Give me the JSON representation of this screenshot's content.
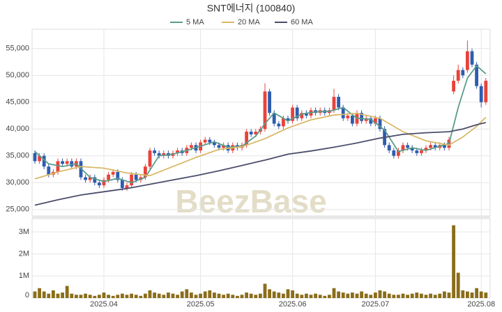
{
  "chart_data": {
    "type": "candlestick",
    "title": "SNT에너지 (100840)",
    "watermark": "BeezBase",
    "grid": true,
    "categories": [
      null,
      null,
      null,
      null,
      null,
      null,
      null,
      null,
      null,
      null,
      null,
      null,
      null,
      null,
      null,
      "2025.04",
      null,
      null,
      null,
      null,
      null,
      null,
      null,
      null,
      null,
      null,
      null,
      null,
      null,
      null,
      null,
      null,
      null,
      null,
      null,
      null,
      "2025.05",
      null,
      null,
      null,
      null,
      null,
      null,
      null,
      null,
      null,
      null,
      null,
      null,
      null,
      null,
      null,
      null,
      null,
      null,
      null,
      "2025.06",
      null,
      null,
      null,
      null,
      null,
      null,
      null,
      null,
      null,
      null,
      null,
      null,
      null,
      null,
      null,
      null,
      null,
      "2025.07",
      null,
      null,
      null,
      null,
      null,
      null,
      null,
      null,
      null,
      null,
      null,
      null,
      null,
      null,
      null,
      null,
      null,
      null,
      null,
      null,
      null,
      null,
      "2025.08",
      null
    ],
    "open": [
      35500,
      34000,
      35000,
      33000,
      31500,
      32000,
      34000,
      33500,
      34000,
      33000,
      34000,
      31000,
      30500,
      31000,
      30000,
      29500,
      30500,
      31500,
      32000,
      30500,
      29000,
      29500,
      31500,
      30500,
      31000,
      33000,
      36000,
      35500,
      35000,
      35500,
      35000,
      35500,
      36000,
      35500,
      36500,
      37000,
      36000,
      37500,
      38000,
      37500,
      37000,
      36500,
      37000,
      36000,
      37000,
      36500,
      37000,
      39500,
      39000,
      39500,
      40000,
      47000,
      43000,
      41000,
      40500,
      42000,
      41500,
      44000,
      42000,
      43000,
      42500,
      43500,
      43000,
      43500,
      43000,
      43500,
      46000,
      44000,
      42000,
      42500,
      41000,
      43000,
      41500,
      42000,
      41000,
      42000,
      40000,
      37000,
      36000,
      35000,
      36000,
      37000,
      36500,
      36000,
      35500,
      36000,
      36500,
      37000,
      36500,
      37000,
      36500,
      47000,
      49000,
      51000,
      51000,
      54500,
      52000,
      48000,
      45000
    ],
    "high": [
      36000,
      35500,
      35500,
      33500,
      32500,
      34500,
      34500,
      34500,
      34500,
      34500,
      34500,
      31500,
      31500,
      31500,
      30500,
      31000,
      32000,
      32500,
      32500,
      31000,
      30000,
      32000,
      32000,
      31500,
      33500,
      36500,
      36500,
      36000,
      36000,
      36000,
      36000,
      36500,
      36500,
      37000,
      37500,
      37500,
      38000,
      38500,
      38500,
      38000,
      37500,
      37500,
      37500,
      37500,
      37500,
      37500,
      40000,
      40000,
      40000,
      40500,
      48500,
      47500,
      43500,
      41500,
      42500,
      42500,
      44500,
      44500,
      43500,
      43500,
      44000,
      44000,
      44000,
      44000,
      44000,
      47500,
      46500,
      44500,
      43000,
      43000,
      43500,
      43500,
      42500,
      42500,
      42500,
      42500,
      40500,
      37500,
      36500,
      36500,
      37500,
      37500,
      37000,
      36500,
      36500,
      37000,
      37500,
      37500,
      37500,
      37500,
      38500,
      50000,
      52000,
      51500,
      56500,
      55000,
      52500,
      48500,
      49500
    ],
    "low": [
      33500,
      33500,
      32500,
      31000,
      31000,
      31500,
      33000,
      33000,
      32500,
      32500,
      30500,
      30000,
      30000,
      29500,
      29000,
      29000,
      30000,
      31000,
      30000,
      28500,
      28500,
      29000,
      30000,
      30000,
      30500,
      32500,
      35000,
      34500,
      34500,
      34500,
      34500,
      35000,
      35000,
      35000,
      36000,
      35500,
      35500,
      37000,
      37000,
      36500,
      36000,
      36000,
      35500,
      35500,
      36000,
      36000,
      36500,
      38500,
      38500,
      39000,
      39500,
      42500,
      40500,
      40000,
      40000,
      41000,
      41000,
      41500,
      41500,
      42000,
      42000,
      42500,
      42500,
      42500,
      42500,
      43000,
      43500,
      41500,
      41500,
      40500,
      40500,
      41000,
      41000,
      40500,
      40500,
      39500,
      36500,
      35500,
      34500,
      34500,
      35500,
      36000,
      35500,
      35000,
      35000,
      35500,
      36000,
      36000,
      36000,
      36000,
      36000,
      46500,
      48500,
      49500,
      50500,
      51500,
      47500,
      44000,
      44500
    ],
    "close": [
      34000,
      35000,
      33000,
      31500,
      32000,
      34000,
      33500,
      34000,
      33000,
      34000,
      31000,
      30500,
      31000,
      30000,
      29500,
      30500,
      31500,
      32000,
      30500,
      29000,
      29500,
      31500,
      30500,
      31000,
      33000,
      36000,
      35500,
      35000,
      35500,
      35000,
      35500,
      36000,
      35500,
      36500,
      37000,
      36000,
      37500,
      38000,
      37500,
      37000,
      36500,
      37000,
      36000,
      37000,
      36500,
      37000,
      39500,
      39000,
      39500,
      40000,
      47000,
      43000,
      41000,
      40500,
      42000,
      41500,
      44000,
      42000,
      43000,
      42500,
      43500,
      43000,
      43500,
      43000,
      43500,
      46000,
      44000,
      42000,
      42500,
      41000,
      43000,
      41500,
      42000,
      41000,
      42000,
      40000,
      37000,
      36000,
      35000,
      36000,
      37000,
      36500,
      36000,
      35500,
      36000,
      36500,
      37000,
      36500,
      37000,
      36500,
      38000,
      49000,
      51000,
      50000,
      54500,
      52000,
      48000,
      45000,
      49000
    ],
    "up_color": "#e8433a",
    "down_color": "#2e5cb0",
    "ylim": [
      23800,
      58600
    ],
    "yticks": [
      {
        "value": 25000,
        "label": "25,000"
      },
      {
        "value": 30000,
        "label": "30,000"
      },
      {
        "value": 35000,
        "label": "35,000"
      },
      {
        "value": 40000,
        "label": "40,000"
      },
      {
        "value": 45000,
        "label": "45,000"
      },
      {
        "value": 50000,
        "label": "50,000"
      },
      {
        "value": 55000,
        "label": "55,000"
      }
    ],
    "series": [
      {
        "name": "5 MA",
        "color": "#5a9c8c",
        "x": [
          0,
          3,
          6,
          9,
          12,
          15,
          18,
          21,
          24,
          27,
          30,
          33,
          36,
          39,
          42,
          45,
          48,
          50,
          52,
          55,
          58,
          61,
          64,
          67,
          70,
          73,
          76,
          79,
          82,
          85,
          88,
          90,
          92,
          94,
          96,
          98
        ],
        "values": [
          35800,
          33500,
          33000,
          33500,
          31000,
          30200,
          30800,
          30000,
          31000,
          35000,
          35300,
          36000,
          36800,
          37600,
          36600,
          36800,
          38700,
          41000,
          43000,
          41500,
          42800,
          43200,
          43300,
          44000,
          42000,
          41800,
          39800,
          35800,
          36500,
          36000,
          36800,
          37300,
          44000,
          49500,
          51800,
          50300
        ]
      },
      {
        "name": "20 MA",
        "color": "#d9b868",
        "x": [
          0,
          5,
          10,
          15,
          20,
          25,
          30,
          35,
          40,
          45,
          50,
          55,
          60,
          65,
          70,
          75,
          80,
          85,
          90,
          93,
          96,
          98
        ],
        "values": [
          30700,
          32000,
          33000,
          32700,
          31800,
          31300,
          33000,
          34700,
          36200,
          36700,
          38200,
          40200,
          41700,
          42600,
          42900,
          42000,
          39500,
          37800,
          37000,
          38500,
          40500,
          42200
        ]
      },
      {
        "name": "60 MA",
        "color": "#4b4d6b",
        "x": [
          0,
          5,
          10,
          15,
          20,
          25,
          30,
          35,
          40,
          45,
          50,
          55,
          60,
          65,
          70,
          75,
          80,
          85,
          90,
          93,
          96,
          98
        ],
        "values": [
          25800,
          26800,
          27700,
          28300,
          28900,
          29700,
          30500,
          31300,
          32200,
          33200,
          34200,
          35300,
          35900,
          36600,
          37400,
          38300,
          39000,
          39300,
          39500,
          40000,
          40800,
          41200
        ]
      }
    ],
    "volume": {
      "color": "#8a6d1a",
      "ylim": [
        0,
        3600000
      ],
      "yticks": [
        0,
        {
          "value": 1000000,
          "label": "1M"
        },
        {
          "value": 2000000,
          "label": "2M"
        },
        {
          "value": 3000000,
          "label": "3M"
        }
      ],
      "values": [
        300000,
        450000,
        300000,
        200000,
        350000,
        200000,
        250000,
        550000,
        200000,
        150000,
        150000,
        200000,
        150000,
        100000,
        150000,
        250000,
        150000,
        100000,
        150000,
        200000,
        150000,
        200000,
        150000,
        100000,
        200000,
        350000,
        250000,
        200000,
        150000,
        250000,
        200000,
        150000,
        300000,
        400000,
        250000,
        150000,
        200000,
        300000,
        350000,
        250000,
        200000,
        150000,
        200000,
        150000,
        100000,
        150000,
        250000,
        200000,
        150000,
        200000,
        650000,
        400000,
        300000,
        250000,
        200000,
        400000,
        350000,
        200000,
        150000,
        200000,
        150000,
        200000,
        150000,
        100000,
        150000,
        450000,
        300000,
        250000,
        200000,
        250000,
        200000,
        300000,
        200000,
        150000,
        250000,
        350000,
        300000,
        200000,
        150000,
        150000,
        200000,
        150000,
        200000,
        250000,
        200000,
        150000,
        200000,
        150000,
        200000,
        300000,
        250000,
        3300000,
        1150000,
        350000,
        300000,
        250000,
        450000,
        300000,
        250000
      ]
    }
  }
}
